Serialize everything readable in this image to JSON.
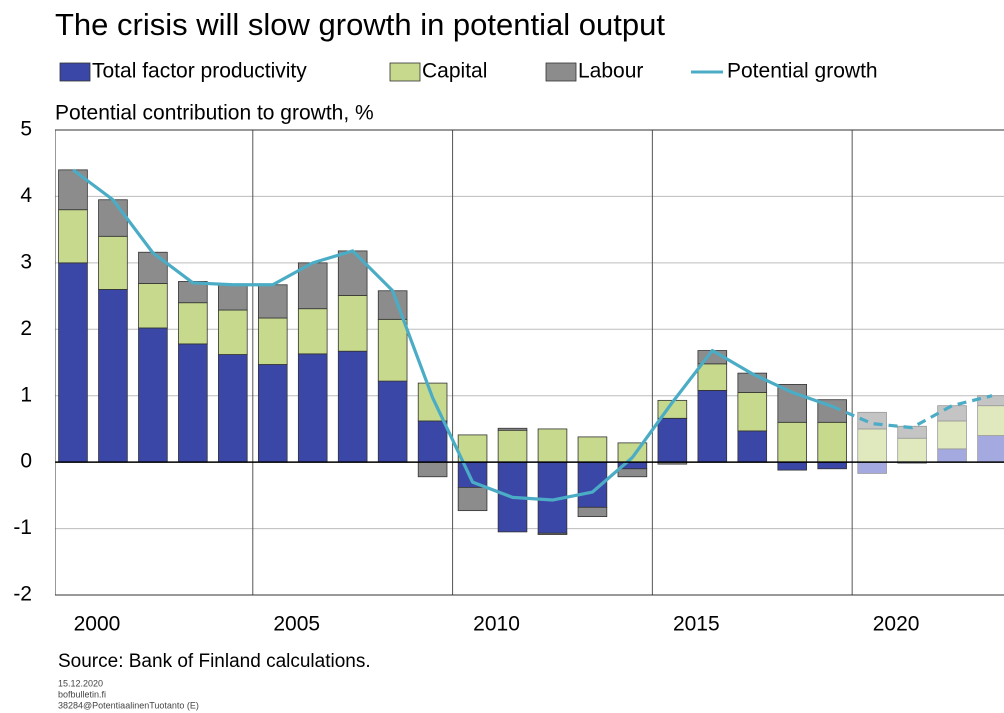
{
  "chart_data": {
    "type": "bar",
    "title": "The crisis will slow growth in potential output",
    "y_label": "Potential contribution to growth, %",
    "source": "Source: Bank of Finland calculations.",
    "footnotes": [
      "15.12.2020",
      "bofbulletin.fi",
      "38284@PotentiaalinenTuotanto  (E)"
    ],
    "x": [
      2000,
      2001,
      2002,
      2003,
      2004,
      2005,
      2006,
      2007,
      2008,
      2009,
      2010,
      2011,
      2012,
      2013,
      2014,
      2015,
      2016,
      2017,
      2018,
      2019,
      2020,
      2021,
      2022,
      2023
    ],
    "xlim": [
      1999.55,
      2023.3
    ],
    "xticks": [
      2000,
      2005,
      2010,
      2015,
      2020
    ],
    "ylim": [
      -2,
      5
    ],
    "yticks": [
      -2,
      -1,
      0,
      1,
      2,
      3,
      4,
      5
    ],
    "grid": true,
    "projection_from": 2020,
    "series": [
      {
        "name": "Total factor productivity",
        "color": "#3b47a6",
        "projection_color": "#a4aae0",
        "values": [
          3.0,
          2.6,
          2.02,
          1.78,
          1.62,
          1.47,
          1.63,
          1.67,
          1.22,
          0.62,
          -0.38,
          -1.05,
          -1.07,
          -0.68,
          -0.1,
          0.66,
          1.08,
          0.47,
          -0.12,
          -0.1,
          -0.17,
          -0.02,
          0.2,
          0.4
        ]
      },
      {
        "name": "Capital",
        "color": "#c6d98d",
        "projection_color": "#dfe9bd",
        "values": [
          0.8,
          0.8,
          0.67,
          0.62,
          0.67,
          0.7,
          0.68,
          0.84,
          0.93,
          0.57,
          0.41,
          0.48,
          0.5,
          0.38,
          0.29,
          0.27,
          0.4,
          0.58,
          0.6,
          0.6,
          0.5,
          0.36,
          0.42,
          0.45
        ]
      },
      {
        "name": "Labour",
        "color": "#8c8c8c",
        "projection_color": "#c4c4c4",
        "values": [
          0.6,
          0.55,
          0.47,
          0.32,
          0.38,
          0.5,
          0.69,
          0.67,
          0.43,
          -0.22,
          -0.35,
          0.03,
          -0.02,
          -0.14,
          -0.12,
          -0.03,
          0.2,
          0.29,
          0.57,
          0.34,
          0.25,
          0.18,
          0.23,
          0.15
        ]
      },
      {
        "name": "Potential growth",
        "type": "line",
        "color": "#4bacc6",
        "values": [
          4.4,
          3.95,
          3.15,
          2.7,
          2.67,
          2.67,
          3.0,
          3.18,
          2.58,
          0.97,
          -0.3,
          -0.53,
          -0.57,
          -0.45,
          0.07,
          0.9,
          1.68,
          1.33,
          1.05,
          0.84,
          0.58,
          0.52,
          0.85,
          1.0
        ]
      }
    ]
  }
}
